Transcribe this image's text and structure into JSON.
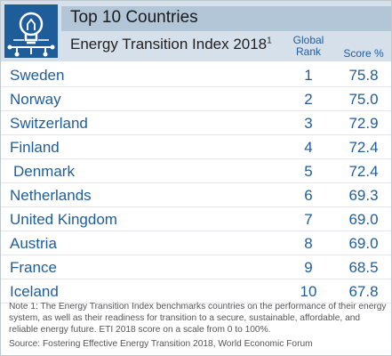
{
  "header": {
    "title": "Top 10 Countries",
    "subtitle": "Energy Transition Index 2018",
    "subtitle_sup": "1",
    "col_rank_line1": "Global",
    "col_rank_line2": "Rank",
    "col_score": "Score %",
    "logo_icon": "lightbulb-circuit-icon"
  },
  "colors": {
    "accent_blue": "#1f5d9a",
    "header_bg": "#d6e0ea",
    "title_bg": "#b3c6d8"
  },
  "rows": [
    {
      "country": "Sweden",
      "rank": "1",
      "score": "75.8"
    },
    {
      "country": "Norway",
      "rank": "2",
      "score": "75.0"
    },
    {
      "country": "Switzerland",
      "rank": "3",
      "score": "72.9"
    },
    {
      "country": "Finland",
      "rank": "4",
      "score": "72.4"
    },
    {
      "country": "Denmark",
      "rank": "5",
      "score": "72.4"
    },
    {
      "country": "Netherlands",
      "rank": "6",
      "score": "69.3"
    },
    {
      "country": "United Kingdom",
      "rank": "7",
      "score": "69.0"
    },
    {
      "country": "Austria",
      "rank": "8",
      "score": "69.0"
    },
    {
      "country": "France",
      "rank": "9",
      "score": "68.5"
    },
    {
      "country": "Iceland",
      "rank": "10",
      "score": "67.8"
    }
  ],
  "footer": {
    "note": "Note 1: The Energy Transition Index benchmarks countries on the performance of their energy system, as well as their readiness for transition to a secure, sustainable, affordable, and reliable energy future. ETI 2018 score on a scale from 0 to 100%.",
    "source": "Source: Fostering Effective Energy Transition 2018, World Economic Forum"
  }
}
